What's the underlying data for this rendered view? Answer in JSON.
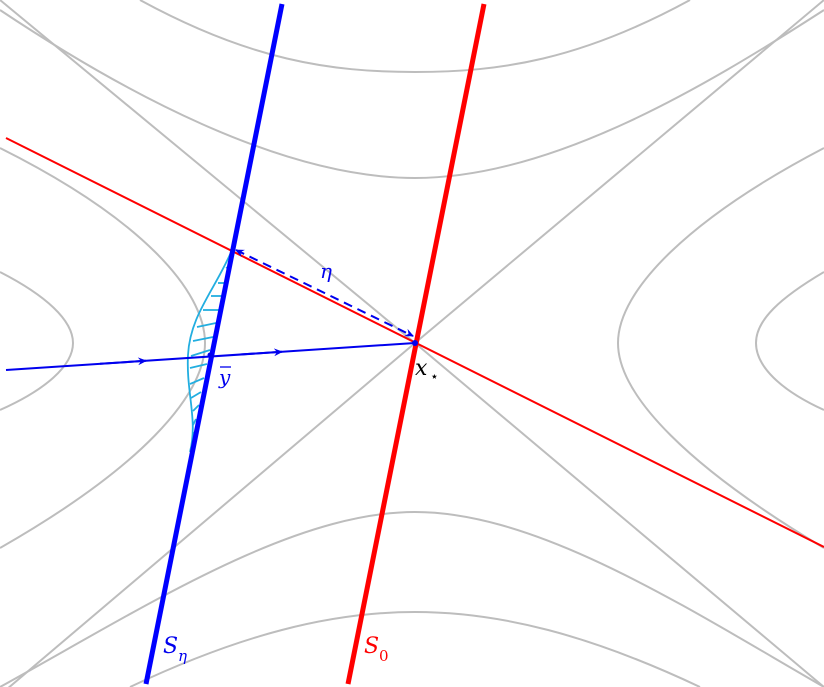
{
  "labels": {
    "eta": "η",
    "ybar": "y",
    "xstar_main": "x",
    "xstar_sub": "⋆",
    "s_eta_main": "S",
    "s_eta_sub": "η",
    "s0_main": "S",
    "s0_sub": "0"
  },
  "colors": {
    "level_curves": "#bdbdbd",
    "stable_line": "#ff0000",
    "section_eta": "#0000ff",
    "section_0": "#ff0000",
    "trajectory": "#0000ee",
    "hatch": "#22aee0",
    "label_eta": "#0000ee",
    "label_s0": "#ff0000",
    "label_xstar": "#000000"
  }
}
